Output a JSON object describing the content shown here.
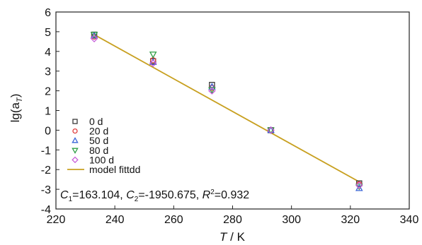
{
  "chart_data": {
    "type": "scatter",
    "xlabel_italic": "T",
    "xlabel_rest": " / K",
    "ylabel_main": "lg(a",
    "ylabel_sub": "T",
    "ylabel_close": ")",
    "xlim": [
      220,
      340
    ],
    "ylim": [
      -4,
      6
    ],
    "xticks": [
      220,
      240,
      260,
      280,
      300,
      320,
      340
    ],
    "yticks": [
      -4,
      -3,
      -2,
      -1,
      0,
      1,
      2,
      3,
      4,
      5,
      6
    ],
    "grid": false,
    "legend_placement": "bottom-left",
    "series": [
      {
        "name": "0 d",
        "marker": "square",
        "color": "#3a3a3a",
        "x": [
          233,
          253,
          273,
          293,
          323
        ],
        "y": [
          4.85,
          3.5,
          2.3,
          0.0,
          -2.7
        ]
      },
      {
        "name": "20 d",
        "marker": "circle",
        "color": "#e03c3c",
        "x": [
          233,
          253,
          273,
          293,
          323
        ],
        "y": [
          4.75,
          3.55,
          2.15,
          0.0,
          -2.75
        ]
      },
      {
        "name": "50 d",
        "marker": "triangle-up",
        "color": "#3a64d8",
        "x": [
          233,
          253,
          273,
          293,
          323
        ],
        "y": [
          4.8,
          3.45,
          2.2,
          0.0,
          -2.95
        ]
      },
      {
        "name": "80 d",
        "marker": "triangle-down",
        "color": "#2e9e44",
        "x": [
          233,
          253,
          273,
          293,
          323
        ],
        "y": [
          4.85,
          3.85,
          2.05,
          0.0,
          -2.85
        ]
      },
      {
        "name": "100 d",
        "marker": "diamond",
        "color": "#c85ed8",
        "x": [
          233,
          253,
          273,
          293,
          323
        ],
        "y": [
          4.65,
          3.4,
          2.0,
          0.0,
          -2.8
        ]
      }
    ],
    "fit_line": {
      "name": "model fittdd",
      "color": "#c8a020",
      "x": [
        233,
        323
      ],
      "y": [
        4.85,
        -2.62
      ]
    },
    "annotation": {
      "c1_label": "C",
      "c1_sub": "1",
      "c1_value": "=163.104, ",
      "c2_label": "C",
      "c2_sub": "2",
      "c2_value": "=-1950.675, ",
      "r2_label": "R",
      "r2_sup": "2",
      "r2_value": "=0.932"
    }
  }
}
